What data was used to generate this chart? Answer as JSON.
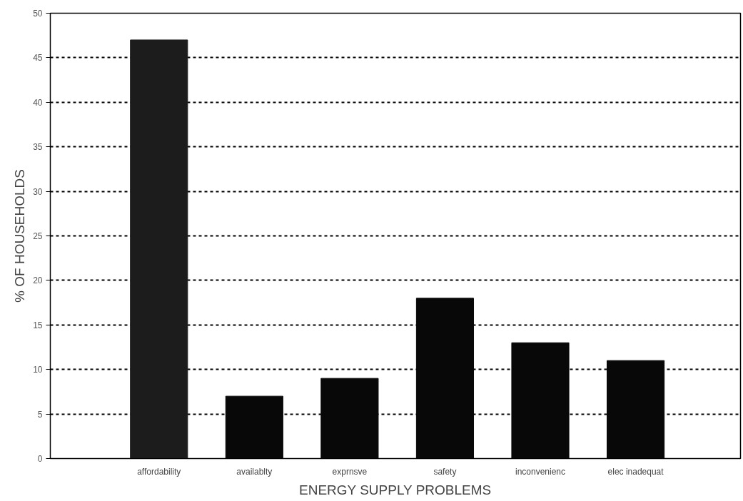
{
  "chart_data": {
    "type": "bar",
    "xlabel": "ENERGY SUPPLY PROBLEMS",
    "ylabel": "% OF HOUSEHOLDS",
    "categories": [
      "affordability",
      "availablty",
      "exprnsve",
      "safety",
      "inconvenienc",
      "elec inadequat"
    ],
    "values": [
      47,
      7,
      9,
      18,
      13,
      11
    ],
    "colors": [
      "#1c1c1c",
      "#080808",
      "#080808",
      "#080808",
      "#080808",
      "#080808"
    ],
    "ylim": [
      0,
      50
    ],
    "yticks": [
      0,
      5,
      10,
      15,
      20,
      25,
      30,
      35,
      40,
      45,
      50
    ],
    "grid": "y"
  }
}
